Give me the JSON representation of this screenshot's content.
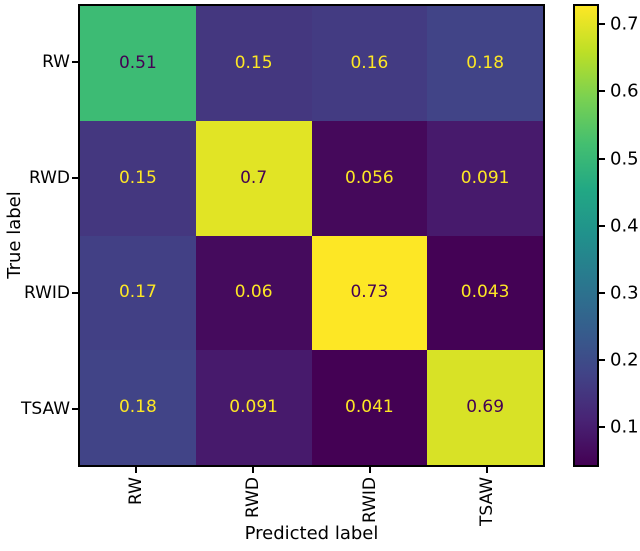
{
  "chart_data": {
    "type": "heatmap",
    "title": "",
    "xlabel": "Predicted label",
    "ylabel": "True label",
    "x_categories": [
      "RW",
      "RWD",
      "RWID",
      "TSAW"
    ],
    "y_categories": [
      "RW",
      "RWD",
      "RWID",
      "TSAW"
    ],
    "matrix": [
      [
        0.51,
        0.15,
        0.16,
        0.18
      ],
      [
        0.15,
        0.7,
        0.056,
        0.091
      ],
      [
        0.17,
        0.06,
        0.73,
        0.043
      ],
      [
        0.18,
        0.091,
        0.041,
        0.69
      ]
    ],
    "cell_labels": [
      [
        "0.51",
        "0.15",
        "0.16",
        "0.18"
      ],
      [
        "0.15",
        "0.7",
        "0.056",
        "0.091"
      ],
      [
        "0.17",
        "0.06",
        "0.73",
        "0.043"
      ],
      [
        "0.18",
        "0.091",
        "0.041",
        "0.69"
      ]
    ],
    "colormap": "viridis",
    "vmin": 0.041,
    "vmax": 0.73,
    "colorbar": {
      "ticks": [
        0.1,
        0.2,
        0.3,
        0.4,
        0.5,
        0.6,
        0.7
      ],
      "tick_labels": [
        "0.1",
        "0.2",
        "0.3",
        "0.4",
        "0.5",
        "0.6",
        "0.7"
      ],
      "position": "right"
    },
    "annotation_colors": {
      "on_dark_cell": "#fde725",
      "on_light_cell": "#440154"
    },
    "layout": {
      "grid": "off",
      "x_tick_rotation": 90,
      "legend": "none"
    }
  }
}
